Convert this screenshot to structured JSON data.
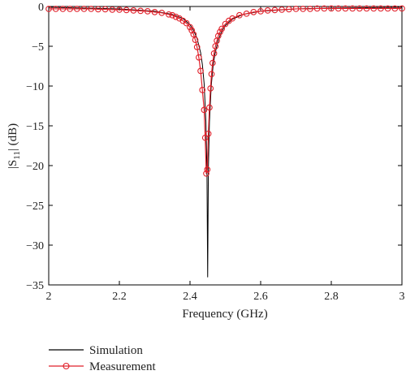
{
  "chart_data": {
    "type": "line",
    "title": "",
    "xlabel": "Frequency (GHz)",
    "ylabel": "|S11| (dB)",
    "xlim": [
      2,
      3
    ],
    "ylim": [
      -35,
      0
    ],
    "x_ticks": [
      2,
      2.2,
      2.4,
      2.6,
      2.8,
      3
    ],
    "x_tick_labels": [
      "2",
      "2.2",
      "2.4",
      "2.6",
      "2.8",
      "3"
    ],
    "y_ticks": [
      0,
      -5,
      -10,
      -15,
      -20,
      -25,
      -30,
      -35
    ],
    "y_tick_labels": [
      "0",
      "−5",
      "−10",
      "−15",
      "−20",
      "−25",
      "−30",
      "−35"
    ],
    "grid": false,
    "legend_position": "bottom-left",
    "series": [
      {
        "name": "Simulation",
        "color": "#000000",
        "marker": "none",
        "x": [
          2.0,
          2.1,
          2.2,
          2.3,
          2.35,
          2.38,
          2.4,
          2.41,
          2.42,
          2.43,
          2.435,
          2.44,
          2.445,
          2.448,
          2.45,
          2.452,
          2.455,
          2.46,
          2.465,
          2.47,
          2.48,
          2.49,
          2.5,
          2.52,
          2.55,
          2.6,
          2.7,
          2.8,
          3.0
        ],
        "y": [
          -0.1,
          -0.2,
          -0.3,
          -0.6,
          -1.0,
          -1.5,
          -2.3,
          -3.0,
          -4.0,
          -5.8,
          -7.3,
          -9.7,
          -14.5,
          -20.8,
          -34.0,
          -20.5,
          -14.5,
          -10.0,
          -7.6,
          -6.1,
          -4.2,
          -3.1,
          -2.4,
          -1.6,
          -1.0,
          -0.6,
          -0.3,
          -0.2,
          -0.1
        ]
      },
      {
        "name": "Measurement",
        "color": "#e0202a",
        "marker": "circle",
        "x": [
          2.0,
          2.02,
          2.04,
          2.06,
          2.08,
          2.1,
          2.12,
          2.14,
          2.16,
          2.18,
          2.2,
          2.22,
          2.24,
          2.26,
          2.28,
          2.3,
          2.32,
          2.34,
          2.35,
          2.36,
          2.37,
          2.38,
          2.39,
          2.4,
          2.405,
          2.41,
          2.415,
          2.42,
          2.425,
          2.43,
          2.435,
          2.44,
          2.443,
          2.446,
          2.449,
          2.452,
          2.455,
          2.458,
          2.461,
          2.464,
          2.468,
          2.472,
          2.476,
          2.48,
          2.485,
          2.49,
          2.5,
          2.51,
          2.52,
          2.54,
          2.56,
          2.58,
          2.6,
          2.62,
          2.64,
          2.66,
          2.68,
          2.7,
          2.72,
          2.74,
          2.76,
          2.78,
          2.8,
          2.82,
          2.84,
          2.86,
          2.88,
          2.9,
          2.92,
          2.94,
          2.96,
          2.98,
          3.0
        ],
        "y": [
          -0.3,
          -0.3,
          -0.3,
          -0.3,
          -0.3,
          -0.3,
          -0.3,
          -0.35,
          -0.35,
          -0.4,
          -0.4,
          -0.45,
          -0.5,
          -0.55,
          -0.6,
          -0.7,
          -0.8,
          -1.0,
          -1.1,
          -1.3,
          -1.5,
          -1.8,
          -2.1,
          -2.6,
          -3.0,
          -3.5,
          -4.2,
          -5.1,
          -6.4,
          -8.1,
          -10.5,
          -13.0,
          -16.5,
          -21.0,
          -20.5,
          -16.0,
          -12.7,
          -10.3,
          -8.5,
          -7.1,
          -5.9,
          -5.0,
          -4.3,
          -3.7,
          -3.2,
          -2.8,
          -2.2,
          -1.8,
          -1.5,
          -1.1,
          -0.9,
          -0.7,
          -0.6,
          -0.5,
          -0.45,
          -0.4,
          -0.35,
          -0.3,
          -0.3,
          -0.3,
          -0.25,
          -0.25,
          -0.25,
          -0.25,
          -0.25,
          -0.25,
          -0.25,
          -0.25,
          -0.25,
          -0.25,
          -0.25,
          -0.25,
          -0.25
        ]
      }
    ]
  }
}
